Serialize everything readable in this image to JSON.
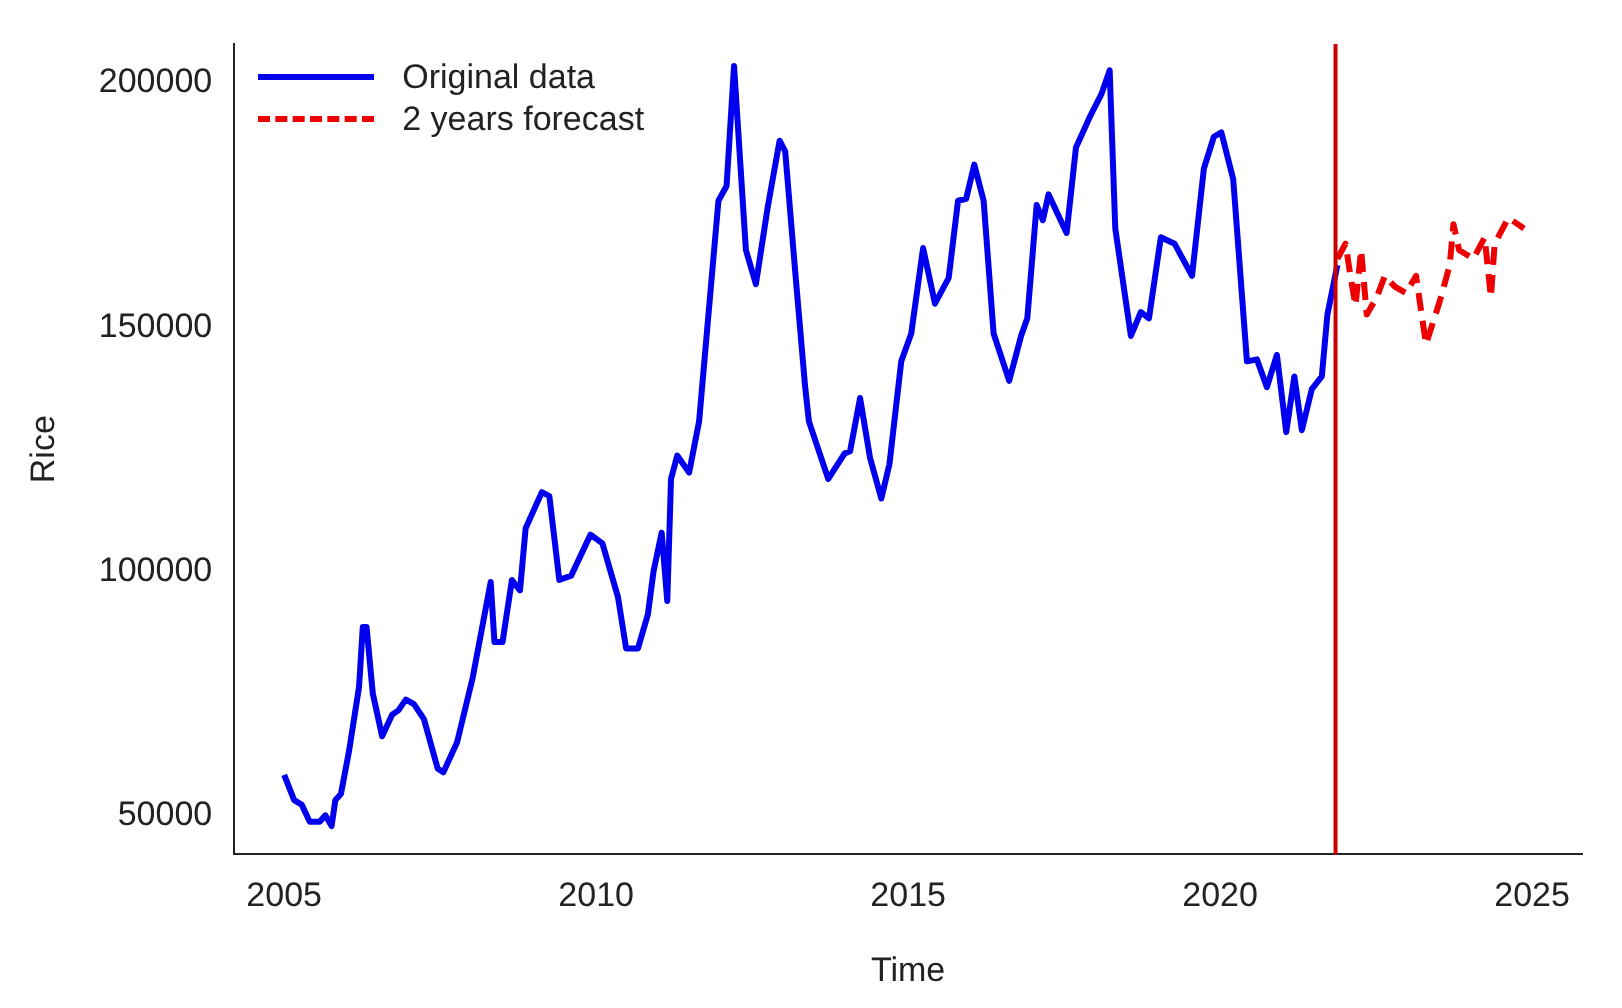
{
  "chart_data": {
    "type": "line",
    "xlabel": "Time",
    "ylabel": "Rice",
    "xlim": [
      2004.2,
      2025.8
    ],
    "xticks": [
      2005,
      2010,
      2015,
      2020,
      2025
    ],
    "ylim": [
      42000,
      208000
    ],
    "yticks": [
      50000,
      100000,
      150000,
      200000
    ],
    "grid": false,
    "legend": "top left",
    "marker": "none",
    "ref_lines": [
      {
        "axis": "x",
        "value": 2021.85,
        "color": "#cc0000"
      }
    ],
    "series": [
      {
        "name": "Original data",
        "color": "#0000ee",
        "line_style": "solid",
        "x": [
          2005.0,
          2005.16,
          2005.28,
          2005.41,
          2005.57,
          2005.66,
          2005.76,
          2005.82,
          2005.91,
          2006.04,
          2006.2,
          2006.26,
          2006.32,
          2006.42,
          2006.57,
          2006.73,
          2006.83,
          2006.95,
          2007.08,
          2007.24,
          2007.46,
          2007.55,
          2007.77,
          2008.02,
          2008.31,
          2008.37,
          2008.5,
          2008.65,
          2008.78,
          2008.87,
          2009.13,
          2009.25,
          2009.41,
          2009.6,
          2009.91,
          2010.1,
          2010.35,
          2010.48,
          2010.67,
          2010.83,
          2010.92,
          2011.05,
          2011.14,
          2011.2,
          2011.3,
          2011.49,
          2011.65,
          2011.96,
          2012.09,
          2012.21,
          2012.4,
          2012.56,
          2012.75,
          2012.94,
          2013.03,
          2013.19,
          2013.35,
          2013.41,
          2013.72,
          2013.98,
          2014.07,
          2014.23,
          2014.39,
          2014.57,
          2014.7,
          2014.89,
          2015.05,
          2015.24,
          2015.43,
          2015.65,
          2015.8,
          2015.93,
          2016.06,
          2016.21,
          2016.37,
          2016.62,
          2016.81,
          2016.91,
          2017.06,
          2017.16,
          2017.25,
          2017.54,
          2017.69,
          2017.91,
          2018.1,
          2018.23,
          2018.32,
          2018.57,
          2018.73,
          2018.86,
          2019.05,
          2019.27,
          2019.55,
          2019.74,
          2019.9,
          2020.02,
          2020.21,
          2020.43,
          2020.59,
          2020.75,
          2020.91,
          2021.06,
          2021.19,
          2021.31,
          2021.47,
          2021.63,
          2021.72,
          2021.88
        ],
        "values": [
          58300,
          53100,
          52200,
          48700,
          48700,
          50000,
          47800,
          53100,
          54400,
          63200,
          76300,
          88600,
          88600,
          75000,
          66200,
          70600,
          71500,
          73700,
          72800,
          69700,
          59600,
          58800,
          64900,
          78100,
          97800,
          85500,
          85500,
          98200,
          96100,
          108800,
          116200,
          115400,
          98200,
          99100,
          107500,
          105700,
          94700,
          84200,
          84200,
          91200,
          100000,
          107900,
          93900,
          118900,
          123700,
          120200,
          130700,
          175900,
          178900,
          203500,
          165800,
          158800,
          174600,
          188200,
          186000,
          161400,
          137700,
          130700,
          118900,
          124100,
          124600,
          135500,
          123200,
          114900,
          121900,
          143000,
          148700,
          166200,
          154800,
          160100,
          175900,
          176300,
          183300,
          175900,
          148700,
          139000,
          148200,
          151800,
          175000,
          171900,
          177200,
          169300,
          186800,
          193000,
          197800,
          202600,
          170200,
          148200,
          153100,
          151800,
          168400,
          167100,
          160500,
          182500,
          189000,
          189900,
          180300,
          143000,
          143400,
          137700,
          144300,
          128500,
          139900,
          128900,
          137300,
          139900,
          152600,
          162700
        ]
      },
      {
        "name": "2 years forecast",
        "color": "#ee0000",
        "line_style": "dashed",
        "x": [
          2021.88,
          2022.01,
          2022.1,
          2022.17,
          2022.26,
          2022.35,
          2022.51,
          2022.64,
          2022.8,
          2022.98,
          2023.14,
          2023.3,
          2023.52,
          2023.68,
          2023.74,
          2023.83,
          2024.06,
          2024.24,
          2024.34,
          2024.4,
          2024.62,
          2024.87
        ],
        "values": [
          164000,
          167100,
          159600,
          154400,
          165800,
          152600,
          156100,
          160500,
          158300,
          157000,
          160500,
          146500,
          155300,
          162700,
          171100,
          165800,
          164000,
          168400,
          156100,
          167100,
          172400,
          170200
        ]
      }
    ]
  }
}
